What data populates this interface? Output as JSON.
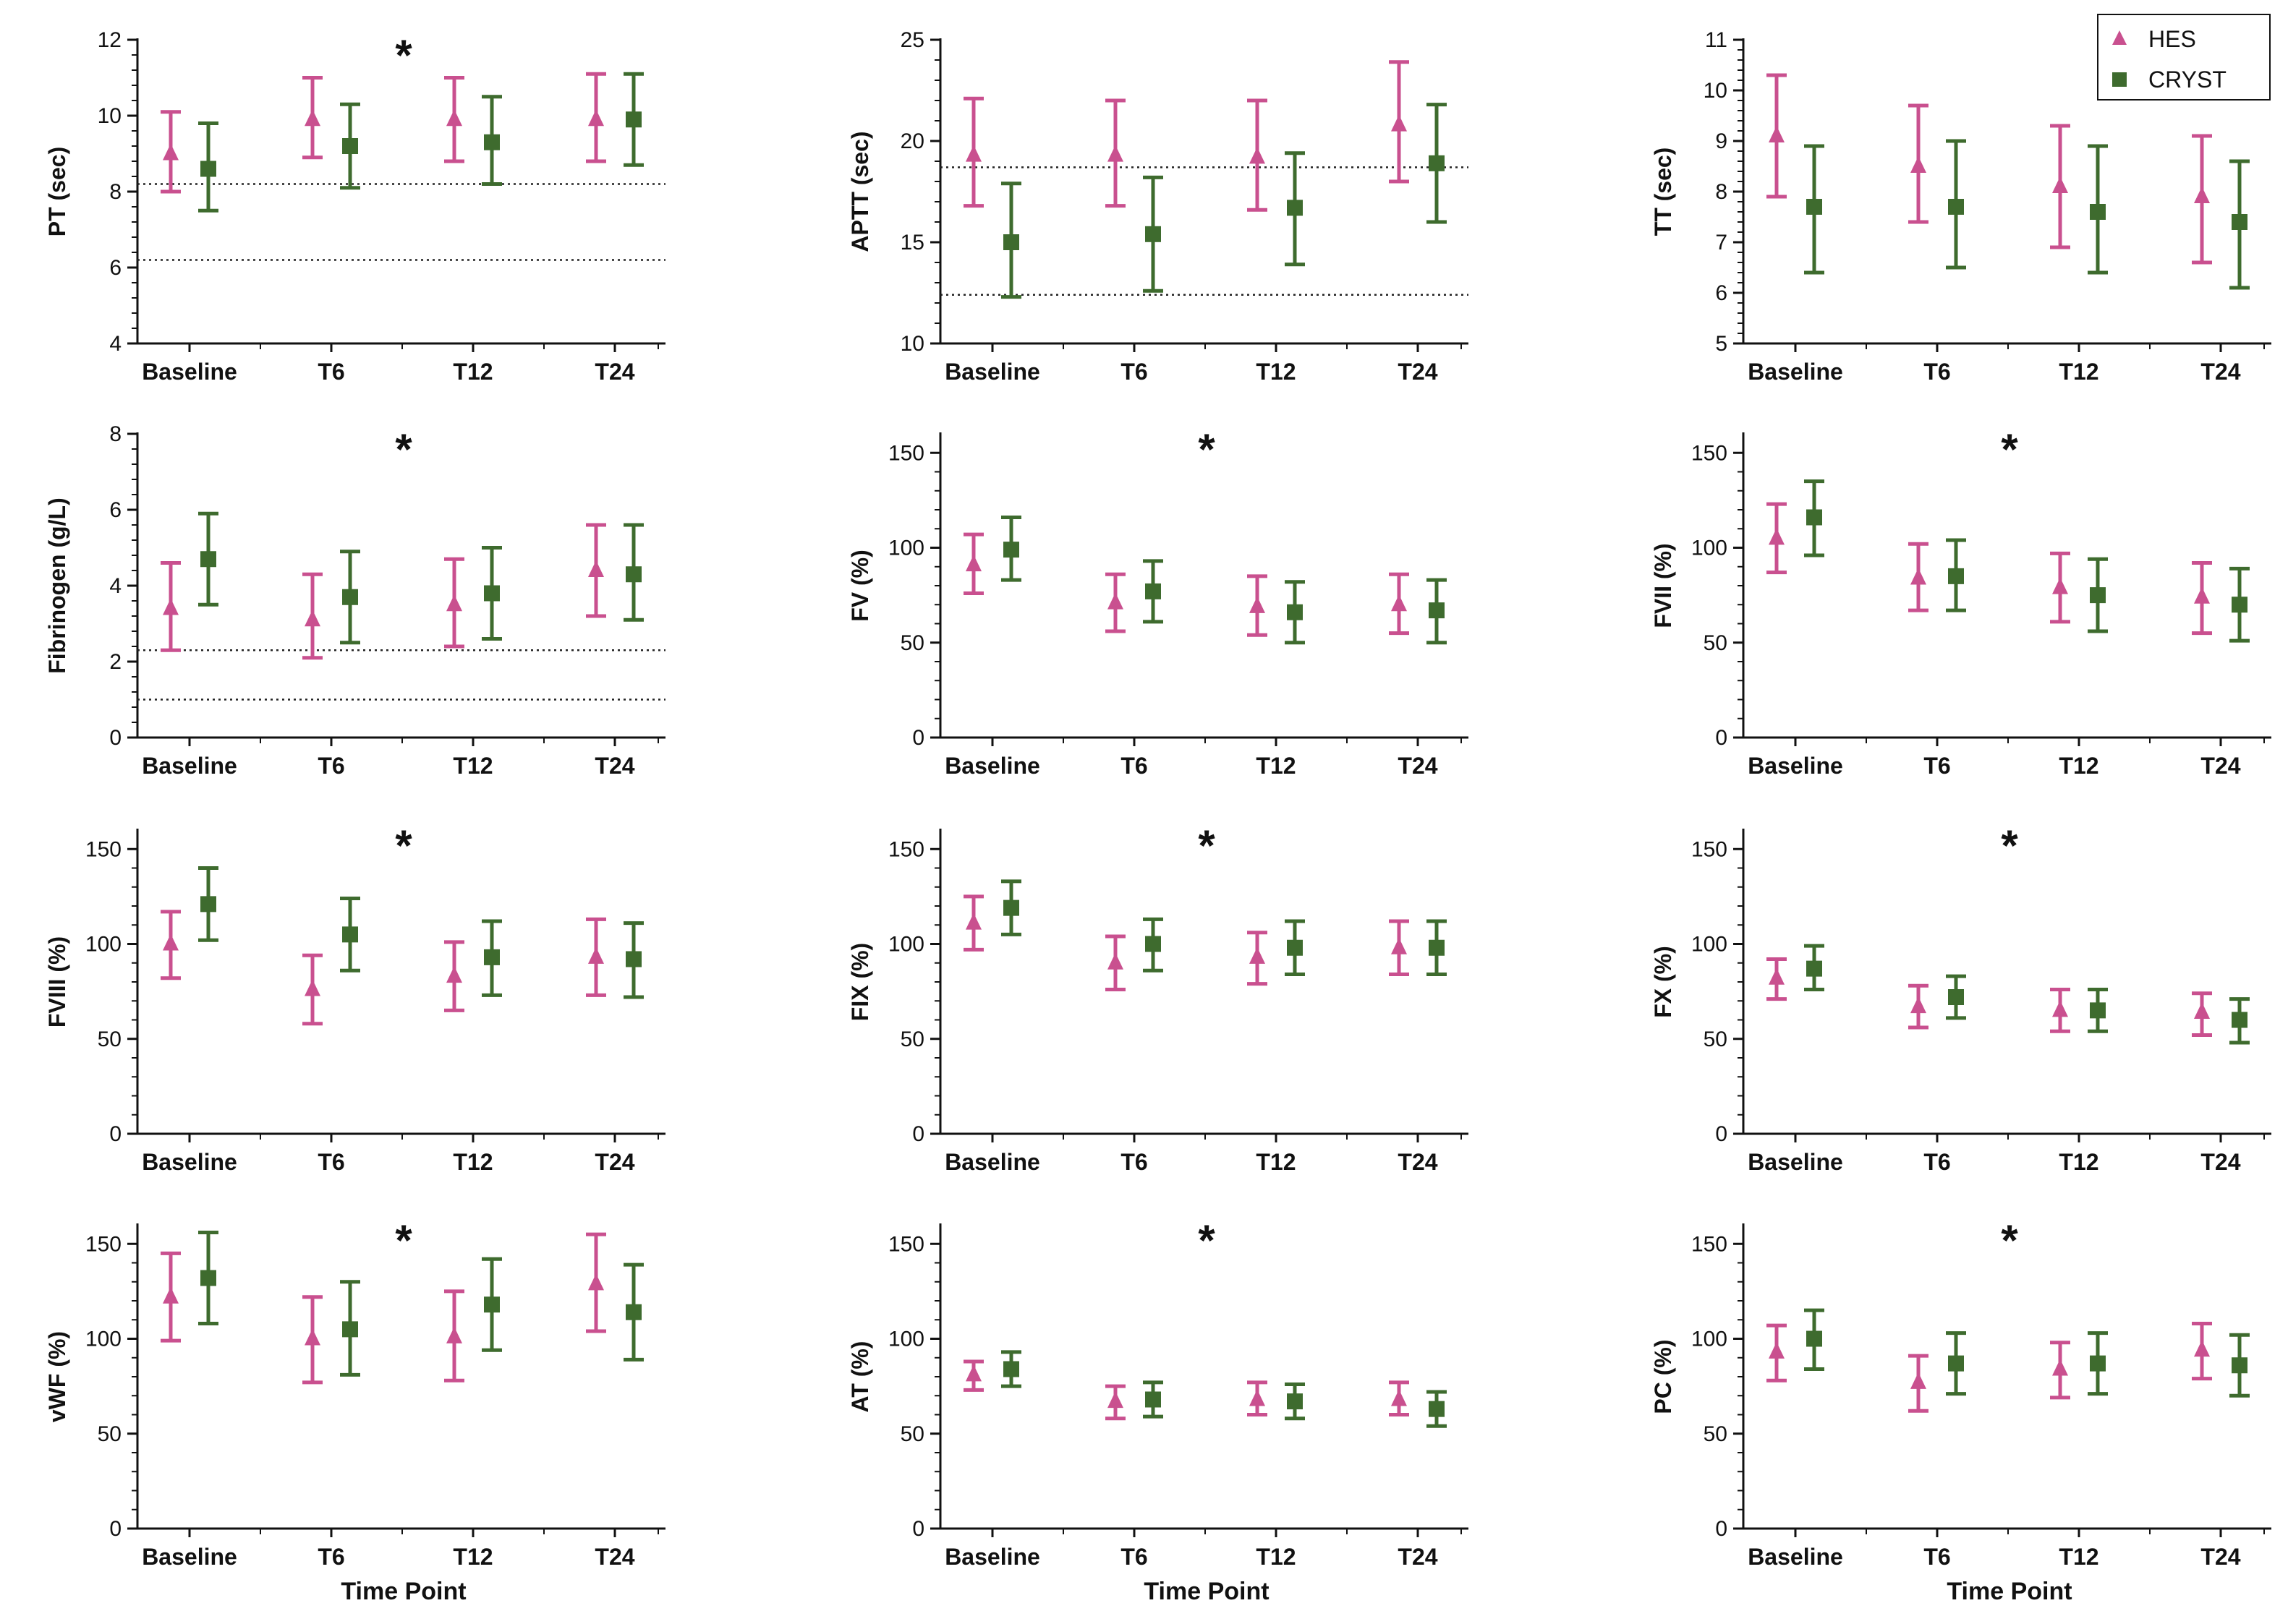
{
  "chart_data": [
    {
      "type": "scatter",
      "id": "pt",
      "ylabel": "PT (sec)",
      "xlabel": "",
      "ylim": [
        4,
        12
      ],
      "yticks": [
        4,
        6,
        8,
        10,
        12
      ],
      "ytick_labels": [
        "4",
        "6",
        "8",
        "10",
        "12"
      ],
      "categories": [
        "Baseline",
        "T6",
        "T12",
        "T24"
      ],
      "reference_lines": [
        8.2,
        6.2
      ],
      "significance": "*",
      "series": [
        {
          "name": "HES",
          "mean": [
            9.0,
            9.9,
            9.9,
            9.9
          ],
          "lower": [
            8.0,
            8.9,
            8.8,
            8.8
          ],
          "upper": [
            10.1,
            11.0,
            11.0,
            11.1
          ]
        },
        {
          "name": "CRYST",
          "mean": [
            8.6,
            9.2,
            9.3,
            9.9
          ],
          "lower": [
            7.5,
            8.1,
            8.2,
            8.7
          ],
          "upper": [
            9.8,
            10.3,
            10.5,
            11.1
          ]
        }
      ]
    },
    {
      "type": "scatter",
      "id": "aptt",
      "ylabel": "APTT (sec)",
      "xlabel": "",
      "ylim": [
        10,
        25
      ],
      "yticks": [
        10,
        15,
        20,
        25
      ],
      "ytick_labels": [
        "10",
        "15",
        "20",
        "25"
      ],
      "categories": [
        "Baseline",
        "T6",
        "T12",
        "T24"
      ],
      "reference_lines": [
        18.7,
        12.4
      ],
      "significance": "",
      "series": [
        {
          "name": "HES",
          "mean": [
            19.3,
            19.3,
            19.2,
            20.8
          ],
          "lower": [
            16.8,
            16.8,
            16.6,
            18.0
          ],
          "upper": [
            22.1,
            22.0,
            22.0,
            23.9
          ]
        },
        {
          "name": "CRYST",
          "mean": [
            15.0,
            15.4,
            16.7,
            18.9
          ],
          "lower": [
            12.3,
            12.6,
            13.9,
            16.0
          ],
          "upper": [
            17.9,
            18.2,
            19.4,
            21.8
          ]
        }
      ]
    },
    {
      "type": "scatter",
      "id": "tt",
      "ylabel": "TT (sec)",
      "xlabel": "",
      "ylim": [
        5,
        11
      ],
      "yticks": [
        5,
        6,
        7,
        8,
        9,
        10,
        11
      ],
      "ytick_labels": [
        "5",
        "6",
        "7",
        "8",
        "9",
        "10",
        "11"
      ],
      "categories": [
        "Baseline",
        "T6",
        "T12",
        "T24"
      ],
      "reference_lines": [],
      "significance": "",
      "series": [
        {
          "name": "HES",
          "mean": [
            9.1,
            8.5,
            8.1,
            7.9
          ],
          "lower": [
            7.9,
            7.4,
            6.9,
            6.6
          ],
          "upper": [
            10.3,
            9.7,
            9.3,
            9.1
          ]
        },
        {
          "name": "CRYST",
          "mean": [
            7.7,
            7.7,
            7.6,
            7.4
          ],
          "lower": [
            6.4,
            6.5,
            6.4,
            6.1
          ],
          "upper": [
            8.9,
            9.0,
            8.9,
            8.6
          ]
        }
      ]
    },
    {
      "type": "scatter",
      "id": "fibrinogen",
      "ylabel": "Fibrinogen (g/L)",
      "xlabel": "",
      "ylim": [
        0,
        8
      ],
      "yticks": [
        0,
        2,
        4,
        6,
        8
      ],
      "ytick_labels": [
        "0",
        "2",
        "4",
        "6",
        "8"
      ],
      "categories": [
        "Baseline",
        "T6",
        "T12",
        "T24"
      ],
      "reference_lines": [
        2.3,
        1.0
      ],
      "significance": "*",
      "series": [
        {
          "name": "HES",
          "mean": [
            3.4,
            3.1,
            3.5,
            4.4
          ],
          "lower": [
            2.3,
            2.1,
            2.4,
            3.2
          ],
          "upper": [
            4.6,
            4.3,
            4.7,
            5.6
          ]
        },
        {
          "name": "CRYST",
          "mean": [
            4.7,
            3.7,
            3.8,
            4.3
          ],
          "lower": [
            3.5,
            2.5,
            2.6,
            3.1
          ],
          "upper": [
            5.9,
            4.9,
            5.0,
            5.6
          ]
        }
      ]
    },
    {
      "type": "scatter",
      "id": "fv",
      "ylabel": "FV (%)",
      "xlabel": "",
      "ylim": [
        0,
        160
      ],
      "yticks": [
        0,
        50,
        100,
        150
      ],
      "ytick_labels": [
        "0",
        "50",
        "100",
        "150"
      ],
      "categories": [
        "Baseline",
        "T6",
        "T12",
        "T24"
      ],
      "reference_lines": [],
      "significance": "*",
      "series": [
        {
          "name": "HES",
          "mean": [
            91,
            71,
            69,
            70
          ],
          "lower": [
            76,
            56,
            54,
            55
          ],
          "upper": [
            107,
            86,
            85,
            86
          ]
        },
        {
          "name": "CRYST",
          "mean": [
            99,
            77,
            66,
            67
          ],
          "lower": [
            83,
            61,
            50,
            50
          ],
          "upper": [
            116,
            93,
            82,
            83
          ]
        }
      ]
    },
    {
      "type": "scatter",
      "id": "fvii",
      "ylabel": "FVII (%)",
      "xlabel": "",
      "ylim": [
        0,
        160
      ],
      "yticks": [
        0,
        50,
        100,
        150
      ],
      "ytick_labels": [
        "0",
        "50",
        "100",
        "150"
      ],
      "categories": [
        "Baseline",
        "T6",
        "T12",
        "T24"
      ],
      "reference_lines": [],
      "significance": "*",
      "series": [
        {
          "name": "HES",
          "mean": [
            105,
            84,
            79,
            74
          ],
          "lower": [
            87,
            67,
            61,
            55
          ],
          "upper": [
            123,
            102,
            97,
            92
          ]
        },
        {
          "name": "CRYST",
          "mean": [
            116,
            85,
            75,
            70
          ],
          "lower": [
            96,
            67,
            56,
            51
          ],
          "upper": [
            135,
            104,
            94,
            89
          ]
        }
      ]
    },
    {
      "type": "scatter",
      "id": "fviii",
      "ylabel": "FVIII (%)",
      "xlabel": "",
      "ylim": [
        0,
        160
      ],
      "yticks": [
        0,
        50,
        100,
        150
      ],
      "ytick_labels": [
        "0",
        "50",
        "100",
        "150"
      ],
      "categories": [
        "Baseline",
        "T6",
        "T12",
        "T24"
      ],
      "reference_lines": [],
      "significance": "*",
      "series": [
        {
          "name": "HES",
          "mean": [
            100,
            76,
            83,
            93
          ],
          "lower": [
            82,
            58,
            65,
            73
          ],
          "upper": [
            117,
            94,
            101,
            113
          ]
        },
        {
          "name": "CRYST",
          "mean": [
            121,
            105,
            93,
            92
          ],
          "lower": [
            102,
            86,
            73,
            72
          ],
          "upper": [
            140,
            124,
            112,
            111
          ]
        }
      ]
    },
    {
      "type": "scatter",
      "id": "fix",
      "ylabel": "FIX (%)",
      "xlabel": "",
      "ylim": [
        0,
        160
      ],
      "yticks": [
        0,
        50,
        100,
        150
      ],
      "ytick_labels": [
        "0",
        "50",
        "100",
        "150"
      ],
      "categories": [
        "Baseline",
        "T6",
        "T12",
        "T24"
      ],
      "reference_lines": [],
      "significance": "*",
      "series": [
        {
          "name": "HES",
          "mean": [
            111,
            90,
            93,
            98
          ],
          "lower": [
            97,
            76,
            79,
            84
          ],
          "upper": [
            125,
            104,
            106,
            112
          ]
        },
        {
          "name": "CRYST",
          "mean": [
            119,
            100,
            98,
            98
          ],
          "lower": [
            105,
            86,
            84,
            84
          ],
          "upper": [
            133,
            113,
            112,
            112
          ]
        }
      ]
    },
    {
      "type": "scatter",
      "id": "fx",
      "ylabel": "FX (%)",
      "xlabel": "",
      "ylim": [
        0,
        160
      ],
      "yticks": [
        0,
        50,
        100,
        150
      ],
      "ytick_labels": [
        "0",
        "50",
        "100",
        "150"
      ],
      "categories": [
        "Baseline",
        "T6",
        "T12",
        "T24"
      ],
      "reference_lines": [],
      "significance": "*",
      "series": [
        {
          "name": "HES",
          "mean": [
            82,
            67,
            65,
            64
          ],
          "lower": [
            71,
            56,
            54,
            52
          ],
          "upper": [
            92,
            78,
            76,
            74
          ]
        },
        {
          "name": "CRYST",
          "mean": [
            87,
            72,
            65,
            60
          ],
          "lower": [
            76,
            61,
            54,
            48
          ],
          "upper": [
            99,
            83,
            76,
            71
          ]
        }
      ]
    },
    {
      "type": "scatter",
      "id": "vwf",
      "ylabel": "vWF (%)",
      "xlabel": "Time Point",
      "ylim": [
        0,
        160
      ],
      "yticks": [
        0,
        50,
        100,
        150
      ],
      "ytick_labels": [
        "0",
        "50",
        "100",
        "150"
      ],
      "categories": [
        "Baseline",
        "T6",
        "T12",
        "T24"
      ],
      "reference_lines": [],
      "significance": "*",
      "series": [
        {
          "name": "HES",
          "mean": [
            122,
            100,
            101,
            129
          ],
          "lower": [
            99,
            77,
            78,
            104
          ],
          "upper": [
            145,
            122,
            125,
            155
          ]
        },
        {
          "name": "CRYST",
          "mean": [
            132,
            105,
            118,
            114
          ],
          "lower": [
            108,
            81,
            94,
            89
          ],
          "upper": [
            156,
            130,
            142,
            139
          ]
        }
      ]
    },
    {
      "type": "scatter",
      "id": "at",
      "ylabel": "AT (%)",
      "xlabel": "Time Point",
      "ylim": [
        0,
        160
      ],
      "yticks": [
        0,
        50,
        100,
        150
      ],
      "ytick_labels": [
        "0",
        "50",
        "100",
        "150"
      ],
      "categories": [
        "Baseline",
        "T6",
        "T12",
        "T24"
      ],
      "reference_lines": [],
      "significance": "*",
      "series": [
        {
          "name": "HES",
          "mean": [
            81,
            67,
            68,
            68
          ],
          "lower": [
            73,
            58,
            60,
            60
          ],
          "upper": [
            88,
            75,
            77,
            77
          ]
        },
        {
          "name": "CRYST",
          "mean": [
            84,
            68,
            67,
            63
          ],
          "lower": [
            75,
            59,
            58,
            54
          ],
          "upper": [
            93,
            77,
            76,
            72
          ]
        }
      ]
    },
    {
      "type": "scatter",
      "id": "pc",
      "ylabel": "PC (%)",
      "xlabel": "Time Point",
      "ylim": [
        0,
        160
      ],
      "yticks": [
        0,
        50,
        100,
        150
      ],
      "ytick_labels": [
        "0",
        "50",
        "100",
        "150"
      ],
      "categories": [
        "Baseline",
        "T6",
        "T12",
        "T24"
      ],
      "reference_lines": [],
      "significance": "*",
      "series": [
        {
          "name": "HES",
          "mean": [
            93,
            77,
            84,
            94
          ],
          "lower": [
            78,
            62,
            69,
            79
          ],
          "upper": [
            107,
            91,
            98,
            108
          ]
        },
        {
          "name": "CRYST",
          "mean": [
            100,
            87,
            87,
            86
          ],
          "lower": [
            84,
            71,
            71,
            70
          ],
          "upper": [
            115,
            103,
            103,
            102
          ]
        }
      ]
    }
  ],
  "legend": {
    "position": "top-right",
    "items": [
      {
        "label": "HES",
        "marker": "triangle"
      },
      {
        "label": "CRYST",
        "marker": "square"
      }
    ]
  },
  "colors": {
    "HES": "#c9508f",
    "CRYST": "#3e6b2e",
    "axis": "#111111"
  }
}
